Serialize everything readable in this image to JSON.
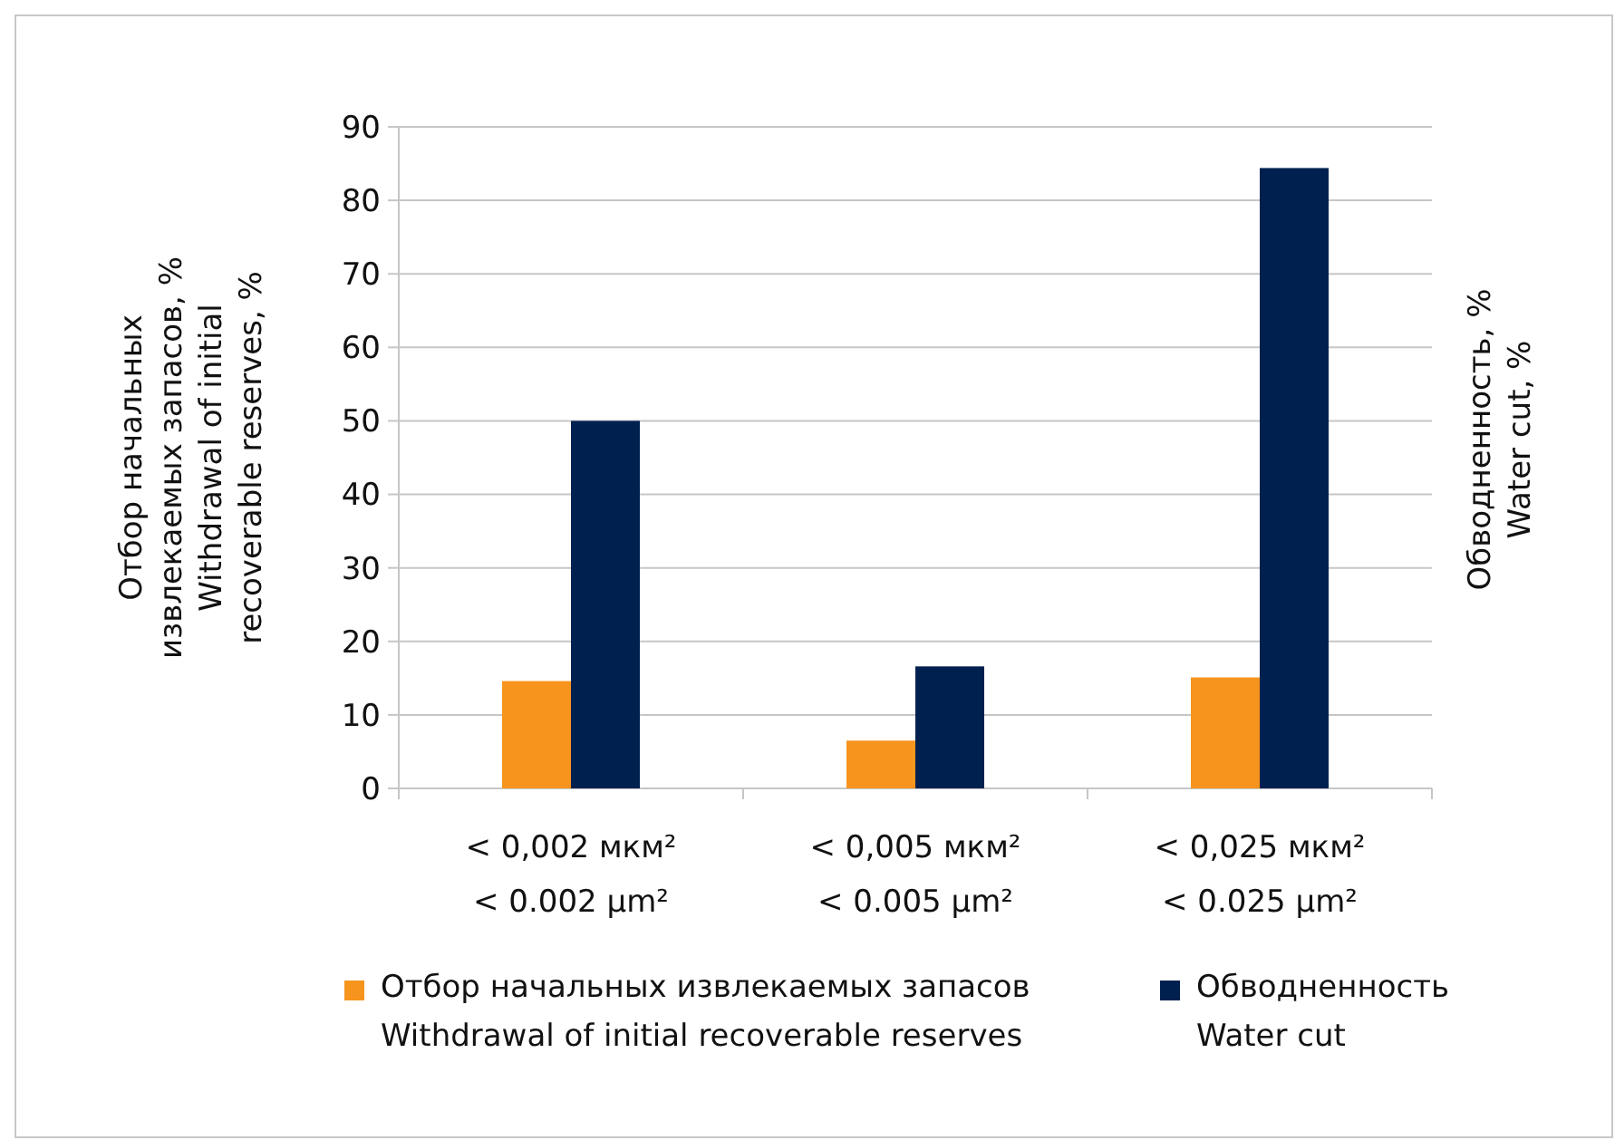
{
  "chart_data": {
    "type": "bar",
    "categories": [
      "< 0,002 мкм²\n< 0.002 µm²",
      "< 0,005 мкм²\n< 0.005 µm²",
      "< 0,025 мкм²\n< 0.025 µm²"
    ],
    "series": [
      {
        "name": "Отбор начальных извлекаемых запасов\nWithdrawal of initial recoverable reserves",
        "color": "#f7941d",
        "values": [
          14.6,
          6.5,
          15.1
        ]
      },
      {
        "name": "Обводненность\nWater cut",
        "color": "#00214f",
        "values": [
          50.0,
          16.6,
          84.4
        ]
      }
    ],
    "ylabel": "Отбор начальных\nизвлекаемых запасов, %\nWithdrawal of initial\nrecoverable reserves, %",
    "y2label": "Обводненность, %\nWater cut, %",
    "ylim": [
      0,
      90
    ],
    "yticks": [
      0,
      10,
      20,
      30,
      40,
      50,
      60,
      70,
      80,
      90
    ],
    "grid": "y",
    "legend": "bottom"
  }
}
